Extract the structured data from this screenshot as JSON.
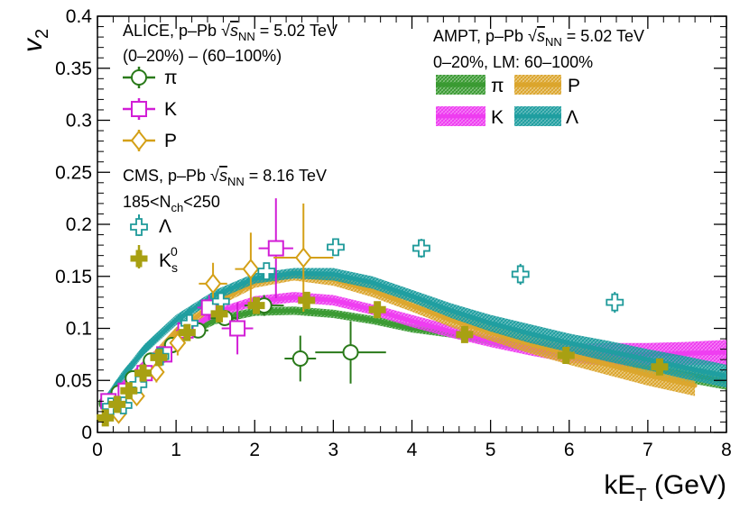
{
  "chart_data": {
    "type": "scatter",
    "title": "",
    "xlabel": "kE",
    "xlabel_sub": "T",
    "xlabel_unit": " (GeV)",
    "ylabel": "v",
    "ylabel_sub": "2",
    "xlim": [
      0,
      8
    ],
    "ylim": [
      0,
      0.4
    ],
    "x_ticks": [
      "0",
      "1",
      "2",
      "3",
      "4",
      "5",
      "6",
      "7",
      "8"
    ],
    "y_ticks": [
      "0",
      "0.05",
      "0.1",
      "0.15",
      "0.2",
      "0.25",
      "0.3",
      "0.35",
      "0.4"
    ],
    "grid": false,
    "legend_alice": {
      "header1": "ALICE, p–Pb ",
      "header1_sqrt": "s",
      "header1_sub": "NN",
      "header1_value": " = 5.02 TeV",
      "header2": "(0–20%) – (60–100%)",
      "entries": [
        "π",
        "K",
        "P"
      ]
    },
    "legend_cms": {
      "header1": "CMS, p–Pb ",
      "header1_sqrt": "s",
      "header1_sub": "NN",
      "header1_value": " = 8.16 TeV",
      "header2a": "185<N",
      "header2_sub": "ch",
      "header2b": "<250",
      "entries": [
        "Λ",
        "K"
      ],
      "k0_sub": "s",
      "k0_sup": "0"
    },
    "legend_ampt": {
      "header1": "AMPT, p–Pb ",
      "header1_sqrt": "s",
      "header1_sub": "NN",
      "header1_value": " = 5.02 TeV",
      "header2": "0–20%, LM: 60–100%",
      "entries": [
        "π",
        "P",
        "K",
        "Λ"
      ]
    },
    "colors": {
      "pion": "#2a7a1a",
      "kaon": "#d21ed6",
      "proton": "#d4a017",
      "lambda": "#1e9a9a",
      "k0s": "#a8a012",
      "ampt_pion": "#3a9a32",
      "ampt_kaon": "#ee3cf0",
      "ampt_proton": "#dba52c",
      "ampt_lambda": "#1f9ea0"
    },
    "series": [
      {
        "name": "ALICE π",
        "marker": "circle",
        "color_key": "pion",
        "points": [
          {
            "x": 0.12,
            "y": 0.028,
            "ex": 0.06,
            "ey": 0.004
          },
          {
            "x": 0.27,
            "y": 0.038,
            "ex": 0.06,
            "ey": 0.004
          },
          {
            "x": 0.45,
            "y": 0.052,
            "ex": 0.07,
            "ey": 0.004
          },
          {
            "x": 0.68,
            "y": 0.069,
            "ex": 0.08,
            "ey": 0.005
          },
          {
            "x": 0.95,
            "y": 0.084,
            "ex": 0.1,
            "ey": 0.005
          },
          {
            "x": 1.28,
            "y": 0.098,
            "ex": 0.13,
            "ey": 0.006
          },
          {
            "x": 1.62,
            "y": 0.11,
            "ex": 0.18,
            "ey": 0.007
          },
          {
            "x": 2.12,
            "y": 0.122,
            "ex": 0.25,
            "ey": 0.01
          },
          {
            "x": 2.58,
            "y": 0.071,
            "ex": 0.2,
            "ey": 0.022
          },
          {
            "x": 3.22,
            "y": 0.077,
            "ex": 0.45,
            "ey": 0.03
          }
        ]
      },
      {
        "name": "ALICE K",
        "marker": "square",
        "color_key": "kaon",
        "points": [
          {
            "x": 0.14,
            "y": 0.03,
            "ex": 0.06,
            "ey": 0.005
          },
          {
            "x": 0.36,
            "y": 0.04,
            "ex": 0.07,
            "ey": 0.006
          },
          {
            "x": 0.6,
            "y": 0.057,
            "ex": 0.08,
            "ey": 0.007
          },
          {
            "x": 0.85,
            "y": 0.075,
            "ex": 0.1,
            "ey": 0.008
          },
          {
            "x": 1.12,
            "y": 0.098,
            "ex": 0.12,
            "ey": 0.01
          },
          {
            "x": 1.42,
            "y": 0.12,
            "ex": 0.15,
            "ey": 0.012
          },
          {
            "x": 1.78,
            "y": 0.1,
            "ex": 0.2,
            "ey": 0.025
          },
          {
            "x": 2.27,
            "y": 0.177,
            "ex": 0.22,
            "ey": 0.048
          }
        ]
      },
      {
        "name": "ALICE P",
        "marker": "diamond",
        "color_key": "proton",
        "points": [
          {
            "x": 0.27,
            "y": 0.018,
            "ex": 0.05,
            "ey": 0.006
          },
          {
            "x": 0.5,
            "y": 0.035,
            "ex": 0.06,
            "ey": 0.008
          },
          {
            "x": 0.75,
            "y": 0.058,
            "ex": 0.08,
            "ey": 0.01
          },
          {
            "x": 1.02,
            "y": 0.086,
            "ex": 0.1,
            "ey": 0.012
          },
          {
            "x": 1.47,
            "y": 0.143,
            "ex": 0.18,
            "ey": 0.02
          },
          {
            "x": 1.95,
            "y": 0.157,
            "ex": 0.2,
            "ey": 0.035
          },
          {
            "x": 2.62,
            "y": 0.168,
            "ex": 0.38,
            "ey": 0.052
          }
        ]
      },
      {
        "name": "CMS Λ",
        "marker": "open-cross",
        "color_key": "lambda",
        "points": [
          {
            "x": 0.17,
            "y": 0.025,
            "ex": 0.0,
            "ey": 0.004
          },
          {
            "x": 0.33,
            "y": 0.026,
            "ex": 0.0,
            "ey": 0.004
          },
          {
            "x": 0.52,
            "y": 0.046,
            "ex": 0.0,
            "ey": 0.004
          },
          {
            "x": 0.8,
            "y": 0.073,
            "ex": 0.0,
            "ey": 0.005
          },
          {
            "x": 1.17,
            "y": 0.105,
            "ex": 0.0,
            "ey": 0.006
          },
          {
            "x": 1.57,
            "y": 0.126,
            "ex": 0.0,
            "ey": 0.007
          },
          {
            "x": 2.15,
            "y": 0.155,
            "ex": 0.0,
            "ey": 0.008
          },
          {
            "x": 3.03,
            "y": 0.178,
            "ex": 0.0,
            "ey": 0.008
          },
          {
            "x": 4.12,
            "y": 0.177,
            "ex": 0.0,
            "ey": 0.009
          },
          {
            "x": 5.38,
            "y": 0.152,
            "ex": 0.0,
            "ey": 0.01
          },
          {
            "x": 6.58,
            "y": 0.125,
            "ex": 0.0,
            "ey": 0.01
          }
        ]
      },
      {
        "name": "CMS K0s",
        "marker": "filled-cross",
        "color_key": "k0s",
        "points": [
          {
            "x": 0.1,
            "y": 0.014,
            "ex": 0.0,
            "ey": 0.003
          },
          {
            "x": 0.25,
            "y": 0.027,
            "ex": 0.0,
            "ey": 0.003
          },
          {
            "x": 0.4,
            "y": 0.04,
            "ex": 0.0,
            "ey": 0.003
          },
          {
            "x": 0.58,
            "y": 0.057,
            "ex": 0.0,
            "ey": 0.004
          },
          {
            "x": 0.78,
            "y": 0.072,
            "ex": 0.0,
            "ey": 0.004
          },
          {
            "x": 1.14,
            "y": 0.096,
            "ex": 0.0,
            "ey": 0.005
          },
          {
            "x": 1.55,
            "y": 0.114,
            "ex": 0.0,
            "ey": 0.006
          },
          {
            "x": 2.02,
            "y": 0.122,
            "ex": 0.0,
            "ey": 0.006
          },
          {
            "x": 2.66,
            "y": 0.127,
            "ex": 0.0,
            "ey": 0.007
          },
          {
            "x": 3.56,
            "y": 0.118,
            "ex": 0.0,
            "ey": 0.007
          },
          {
            "x": 4.67,
            "y": 0.094,
            "ex": 0.0,
            "ey": 0.007
          },
          {
            "x": 5.96,
            "y": 0.074,
            "ex": 0.0,
            "ey": 0.007
          },
          {
            "x": 7.15,
            "y": 0.063,
            "ex": 0.0,
            "ey": 0.006
          }
        ]
      }
    ],
    "bands": [
      {
        "name": "AMPT π",
        "color_key": "ampt_pion",
        "x": [
          0.1,
          0.3,
          0.6,
          1.0,
          1.5,
          2.0,
          2.5,
          3.0,
          3.5,
          4.0,
          4.5,
          5.0,
          5.5,
          6.0,
          6.5,
          7.0,
          7.5,
          8.0
        ],
        "y": [
          0.025,
          0.042,
          0.064,
          0.09,
          0.108,
          0.116,
          0.117,
          0.114,
          0.108,
          0.1,
          0.095,
          0.088,
          0.082,
          0.075,
          0.069,
          0.062,
          0.056,
          0.049
        ],
        "w": [
          0.004,
          0.004,
          0.004,
          0.004,
          0.004,
          0.004,
          0.004,
          0.004,
          0.004,
          0.004,
          0.004,
          0.004,
          0.005,
          0.005,
          0.006,
          0.007,
          0.008,
          0.008
        ]
      },
      {
        "name": "AMPT K",
        "color_key": "ampt_kaon",
        "x": [
          0.1,
          0.3,
          0.6,
          1.0,
          1.5,
          2.0,
          2.5,
          3.0,
          3.5,
          4.0,
          4.5,
          5.0,
          5.5,
          6.0,
          6.5,
          7.0,
          7.5,
          8.0
        ],
        "y": [
          0.026,
          0.044,
          0.066,
          0.093,
          0.115,
          0.126,
          0.13,
          0.127,
          0.118,
          0.107,
          0.097,
          0.088,
          0.081,
          0.076,
          0.075,
          0.075,
          0.076,
          0.077
        ],
        "w": [
          0.004,
          0.004,
          0.004,
          0.004,
          0.004,
          0.005,
          0.005,
          0.005,
          0.005,
          0.006,
          0.006,
          0.006,
          0.007,
          0.009,
          0.011,
          0.011,
          0.011,
          0.012
        ]
      },
      {
        "name": "AMPT P",
        "color_key": "ampt_proton",
        "x": [
          0.1,
          0.3,
          0.6,
          1.0,
          1.5,
          2.0,
          2.5,
          3.0,
          3.5,
          4.0,
          4.5,
          5.0,
          5.5,
          6.0,
          6.5,
          7.0,
          7.6
        ],
        "y": [
          0.02,
          0.037,
          0.063,
          0.096,
          0.125,
          0.144,
          0.151,
          0.147,
          0.136,
          0.122,
          0.108,
          0.096,
          0.085,
          0.075,
          0.065,
          0.055,
          0.045
        ],
        "w": [
          0.004,
          0.004,
          0.005,
          0.005,
          0.005,
          0.005,
          0.005,
          0.006,
          0.006,
          0.006,
          0.007,
          0.008,
          0.009,
          0.01,
          0.01,
          0.01,
          0.01
        ]
      },
      {
        "name": "AMPT Λ",
        "color_key": "ampt_lambda",
        "x": [
          0.1,
          0.3,
          0.6,
          1.0,
          1.5,
          2.0,
          2.5,
          3.0,
          3.5,
          4.0,
          4.5,
          5.0,
          5.5,
          6.0,
          6.5,
          7.0,
          7.5,
          8.0
        ],
        "y": [
          0.03,
          0.052,
          0.08,
          0.108,
          0.132,
          0.148,
          0.153,
          0.152,
          0.144,
          0.131,
          0.117,
          0.105,
          0.095,
          0.086,
          0.078,
          0.07,
          0.062,
          0.054
        ],
        "w": [
          0.005,
          0.005,
          0.005,
          0.005,
          0.005,
          0.005,
          0.005,
          0.006,
          0.006,
          0.006,
          0.007,
          0.008,
          0.009,
          0.009,
          0.01,
          0.01,
          0.011,
          0.011
        ]
      }
    ]
  }
}
